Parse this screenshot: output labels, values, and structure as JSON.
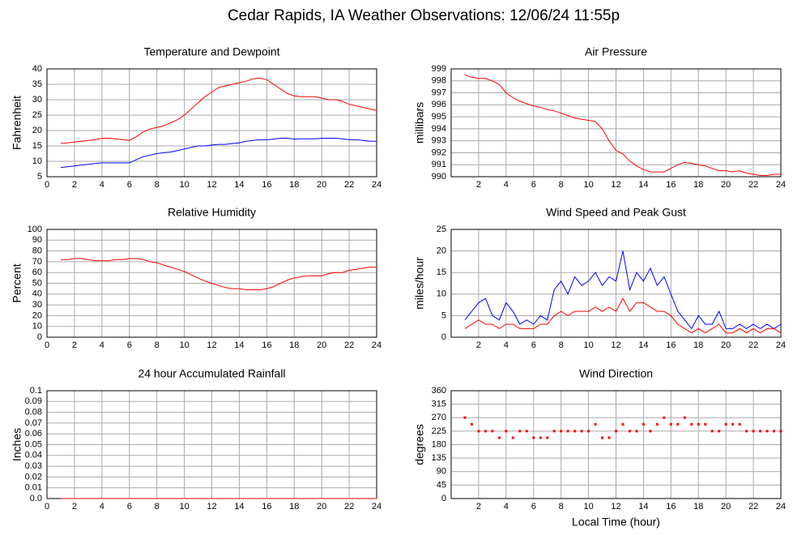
{
  "title": "Cedar Rapids, IA Weather Observations: 12/06/24 11:55p",
  "chart_data": [
    {
      "type": "line",
      "title": "Temperature and Dewpoint",
      "ylabel": "Fahrenheit",
      "x": [
        1,
        1.5,
        2,
        2.5,
        3,
        3.5,
        4,
        4.5,
        5,
        5.5,
        6,
        6.5,
        7,
        7.5,
        8,
        8.5,
        9,
        9.5,
        10,
        10.5,
        11,
        11.5,
        12,
        12.5,
        13,
        13.5,
        14,
        14.5,
        15,
        15.5,
        16,
        16.5,
        17,
        17.5,
        18,
        18.5,
        19,
        19.5,
        20,
        20.5,
        21,
        21.5,
        22,
        22.5,
        23,
        23.5,
        24
      ],
      "series": [
        {
          "color": "#ff0000",
          "values": [
            15.8,
            16,
            16.3,
            16.5,
            16.8,
            17,
            17.5,
            17.5,
            17.3,
            17,
            16.8,
            18,
            19.5,
            20.5,
            21,
            21.5,
            22.5,
            23.5,
            25,
            27,
            29,
            31,
            32.5,
            34,
            34.5,
            35,
            35.5,
            36,
            36.8,
            37,
            36.5,
            35,
            33.5,
            32,
            31.2,
            31,
            31,
            31,
            30.5,
            30,
            30,
            29.5,
            28.5,
            28,
            27.5,
            27,
            26.5
          ]
        },
        {
          "color": "#0000ff",
          "values": [
            8,
            8.2,
            8.5,
            8.8,
            9,
            9.3,
            9.5,
            9.5,
            9.5,
            9.5,
            9.5,
            10.5,
            11.5,
            12,
            12.5,
            12.8,
            13,
            13.5,
            14,
            14.5,
            15,
            15,
            15.3,
            15.5,
            15.5,
            15.8,
            16,
            16.5,
            16.8,
            17,
            17,
            17.2,
            17.5,
            17.5,
            17.2,
            17.3,
            17.3,
            17.3,
            17.5,
            17.5,
            17.5,
            17.3,
            17,
            17,
            16.8,
            16.5,
            16.5
          ]
        }
      ],
      "xlim": [
        0,
        24
      ],
      "xticks": [
        0,
        2,
        4,
        6,
        8,
        10,
        12,
        14,
        16,
        18,
        20,
        22,
        24
      ],
      "ylim": [
        5,
        40
      ],
      "yticks": [
        5,
        10,
        15,
        20,
        25,
        30,
        35,
        40
      ],
      "grid": true
    },
    {
      "type": "line",
      "title": "Air Pressure",
      "ylabel": "millibars",
      "x": [
        1,
        1.5,
        2,
        2.5,
        3,
        3.5,
        4,
        4.5,
        5,
        5.5,
        6,
        6.5,
        7,
        7.5,
        8,
        8.5,
        9,
        9.5,
        10,
        10.5,
        11,
        11.5,
        12,
        12.5,
        13,
        13.5,
        14,
        14.5,
        15,
        15.5,
        16,
        16.5,
        17,
        17.5,
        18,
        18.5,
        19,
        19.5,
        20,
        20.5,
        21,
        21.5,
        22,
        22.5,
        23,
        23.5,
        24
      ],
      "series": [
        {
          "color": "#ff0000",
          "values": [
            998.5,
            998.3,
            998.2,
            998.2,
            998,
            997.7,
            997,
            996.6,
            996.3,
            996.1,
            995.9,
            995.8,
            995.6,
            995.5,
            995.3,
            995.1,
            994.9,
            994.8,
            994.7,
            994.6,
            994,
            993,
            992.2,
            991.9,
            991.3,
            990.9,
            990.6,
            990.4,
            990.4,
            990.4,
            990.7,
            991,
            991.2,
            991.1,
            991,
            990.9,
            990.7,
            990.5,
            990.5,
            990.4,
            990.5,
            990.3,
            990.2,
            990.1,
            990.1,
            990.2,
            990.2
          ]
        }
      ],
      "xlim": [
        0,
        24
      ],
      "xticks": [
        2,
        4,
        6,
        8,
        10,
        12,
        14,
        16,
        18,
        20,
        22,
        24
      ],
      "ylim": [
        990,
        999
      ],
      "yticks": [
        990,
        991,
        992,
        993,
        994,
        995,
        996,
        997,
        998,
        999
      ],
      "grid": true
    },
    {
      "type": "line",
      "title": "Relative Humidity",
      "ylabel": "Percent",
      "x": [
        1,
        1.5,
        2,
        2.5,
        3,
        3.5,
        4,
        4.5,
        5,
        5.5,
        6,
        6.5,
        7,
        7.5,
        8,
        8.5,
        9,
        9.5,
        10,
        10.5,
        11,
        11.5,
        12,
        12.5,
        13,
        13.5,
        14,
        14.5,
        15,
        15.5,
        16,
        16.5,
        17,
        17.5,
        18,
        18.5,
        19,
        19.5,
        20,
        20.5,
        21,
        21.5,
        22,
        22.5,
        23,
        23.5,
        24
      ],
      "series": [
        {
          "color": "#ff0000",
          "values": [
            72,
            72,
            73,
            73,
            72,
            71,
            71,
            71,
            72,
            72,
            73,
            73,
            72,
            70,
            69,
            67,
            65,
            63,
            61,
            58,
            55,
            52,
            50,
            48,
            46,
            45,
            45,
            44,
            44,
            44,
            45,
            47,
            50,
            53,
            55,
            56,
            57,
            57,
            57,
            59,
            60,
            60,
            62,
            63,
            64,
            65,
            65
          ]
        }
      ],
      "xlim": [
        0,
        24
      ],
      "xticks": [
        0,
        2,
        4,
        6,
        8,
        10,
        12,
        14,
        16,
        18,
        20,
        22,
        24
      ],
      "ylim": [
        0,
        100
      ],
      "yticks": [
        0,
        10,
        20,
        30,
        40,
        50,
        60,
        70,
        80,
        90,
        100
      ],
      "grid": true
    },
    {
      "type": "line",
      "title": "Wind Speed and Peak Gust",
      "ylabel": "miles/hour",
      "x": [
        1,
        1.5,
        2,
        2.5,
        3,
        3.5,
        4,
        4.5,
        5,
        5.5,
        6,
        6.5,
        7,
        7.5,
        8,
        8.5,
        9,
        9.5,
        10,
        10.5,
        11,
        11.5,
        12,
        12.5,
        13,
        13.5,
        14,
        14.5,
        15,
        15.5,
        16,
        16.5,
        17,
        17.5,
        18,
        18.5,
        19,
        19.5,
        20,
        20.5,
        21,
        21.5,
        22,
        22.5,
        23,
        23.5,
        24
      ],
      "series": [
        {
          "color": "#0000ff",
          "values": [
            4,
            6,
            8,
            9,
            5,
            4,
            8,
            6,
            3,
            4,
            3,
            5,
            4,
            11,
            13,
            10,
            14,
            12,
            13,
            15,
            12,
            14,
            13,
            20,
            11,
            15,
            13,
            16,
            12,
            14,
            10,
            6,
            4,
            2,
            5,
            3,
            3,
            6,
            2,
            2,
            3,
            2,
            3,
            2,
            3,
            2,
            3
          ]
        },
        {
          "color": "#ff0000",
          "values": [
            2,
            3,
            4,
            3,
            3,
            2,
            3,
            3,
            2,
            2,
            2,
            3,
            3,
            5,
            6,
            5,
            6,
            6,
            6,
            7,
            6,
            7,
            6,
            9,
            6,
            8,
            8,
            7,
            6,
            6,
            5,
            3,
            2,
            1,
            2,
            1,
            2,
            3,
            1,
            1,
            2,
            1,
            2,
            1,
            2,
            2,
            1
          ]
        }
      ],
      "xlim": [
        0,
        24
      ],
      "xticks": [
        2,
        4,
        6,
        8,
        10,
        12,
        14,
        16,
        18,
        20,
        22,
        24
      ],
      "ylim": [
        0,
        25
      ],
      "yticks": [
        0,
        5,
        10,
        15,
        20,
        25
      ],
      "grid": true
    },
    {
      "type": "line",
      "title": "24 hour Accumulated Rainfall",
      "ylabel": "Inches",
      "x": [
        1,
        24
      ],
      "series": [
        {
          "color": "#ff0000",
          "values": [
            0,
            0
          ]
        }
      ],
      "xlim": [
        0,
        24
      ],
      "xticks": [
        0,
        2,
        4,
        6,
        8,
        10,
        12,
        14,
        16,
        18,
        20,
        22,
        24
      ],
      "ylim": [
        0,
        0.1
      ],
      "yticks": [
        {
          "value": 0,
          "label": "0.0"
        },
        0.01,
        0.02,
        0.03,
        0.04,
        0.05,
        0.06,
        0.07,
        0.08,
        0.09,
        0.1
      ],
      "grid": true
    },
    {
      "type": "scatter",
      "title": "Wind Direction",
      "ylabel": "degrees",
      "xlabel": "Local Time (hour)",
      "x": [
        1,
        1.5,
        2,
        2.5,
        3,
        3.5,
        4,
        4.5,
        5,
        5.5,
        6,
        6.5,
        7,
        7.5,
        8,
        8.5,
        9,
        9.5,
        10,
        10.5,
        11,
        11.5,
        12,
        12.5,
        13,
        13.5,
        14,
        14.5,
        15,
        15.5,
        16,
        16.5,
        17,
        17.5,
        18,
        18.5,
        19,
        19.5,
        20,
        20.5,
        21,
        21.5,
        22,
        22.5,
        23,
        23.5,
        24
      ],
      "series": [
        {
          "color": "#ff0000",
          "values": [
            270,
            248,
            225,
            225,
            225,
            203,
            225,
            203,
            225,
            225,
            203,
            203,
            203,
            225,
            225,
            225,
            225,
            225,
            225,
            248,
            203,
            203,
            225,
            248,
            225,
            225,
            248,
            225,
            248,
            270,
            248,
            248,
            270,
            248,
            248,
            248,
            225,
            225,
            248,
            248,
            248,
            225,
            225,
            225,
            225,
            225,
            225
          ]
        }
      ],
      "xlim": [
        0,
        24
      ],
      "xticks": [
        2,
        4,
        6,
        8,
        10,
        12,
        14,
        16,
        18,
        20,
        22,
        24
      ],
      "ylim": [
        0,
        360
      ],
      "yticks": [
        0,
        45,
        90,
        135,
        180,
        225,
        270,
        315,
        360
      ],
      "grid": true
    }
  ]
}
